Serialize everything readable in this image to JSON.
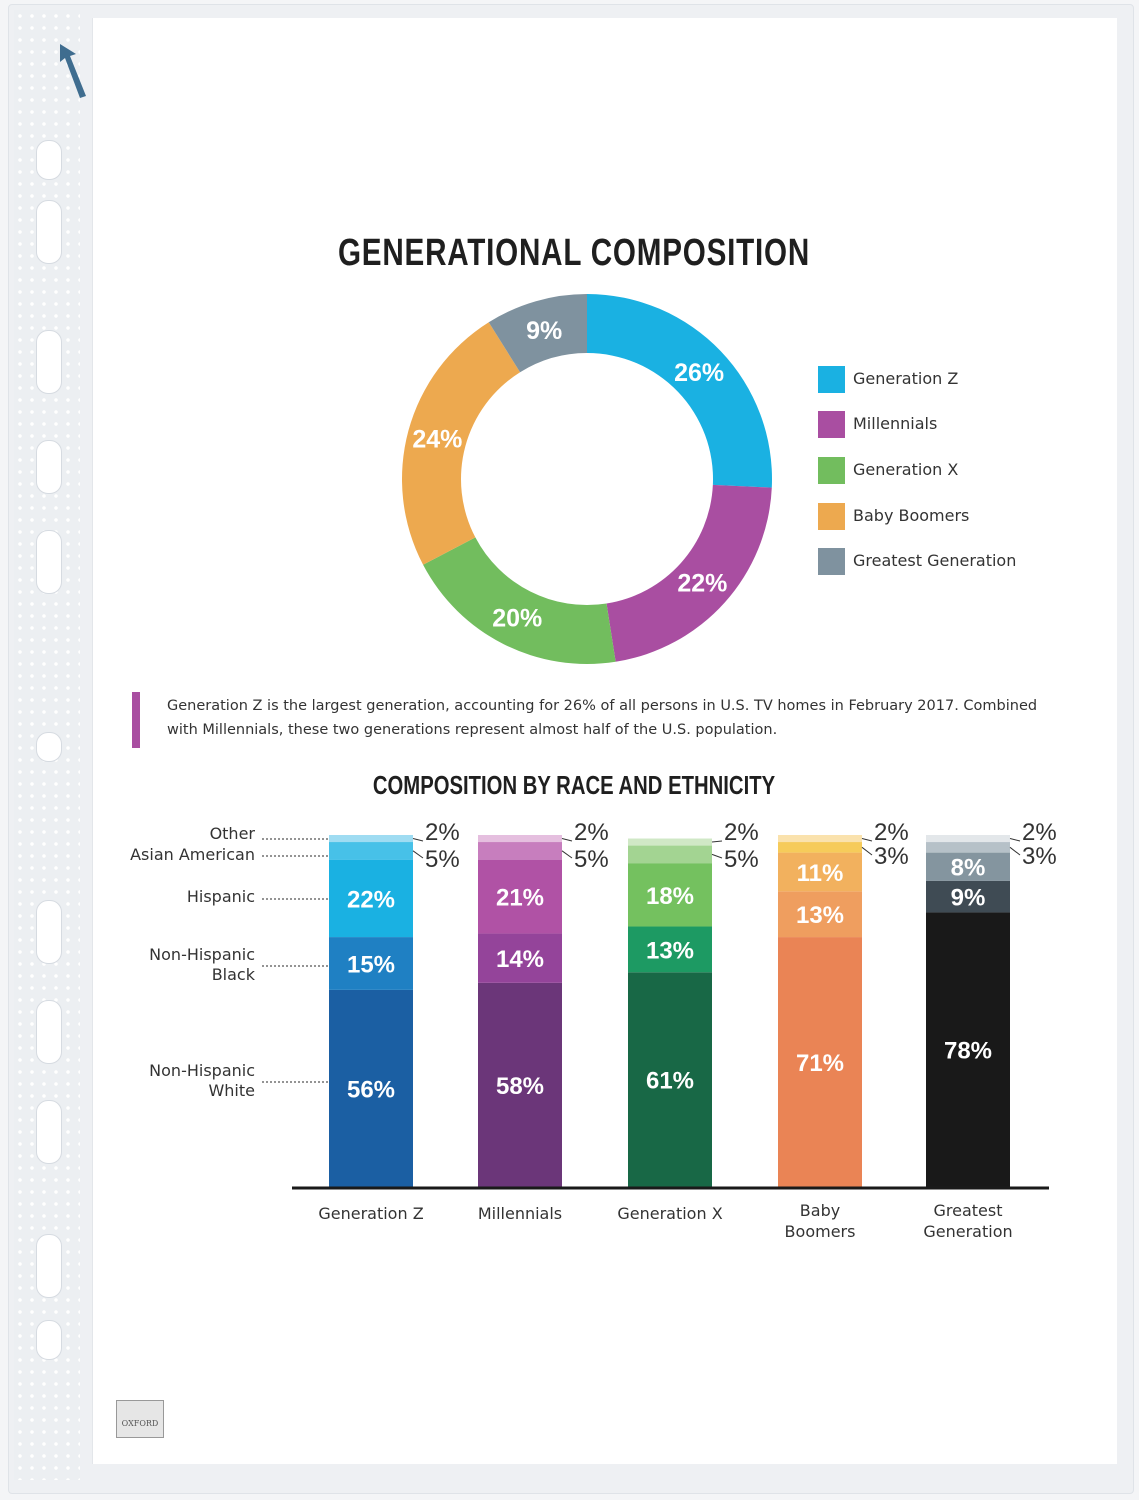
{
  "chart_data": [
    {
      "type": "pie",
      "variant": "donut",
      "title": "GENERATIONAL COMPOSITION",
      "labels": [
        "Generation Z",
        "Millennials",
        "Generation X",
        "Baby Boomers",
        "Greatest Generation"
      ],
      "values": [
        26,
        22,
        20,
        24,
        9
      ],
      "value_labels": [
        "26%",
        "22%",
        "20%",
        "24%",
        "9%"
      ],
      "colors": [
        "#1ab1e2",
        "#a94ea1",
        "#72bd5e",
        "#eda94f",
        "#7f929f"
      ],
      "legend_position": "right"
    },
    {
      "type": "bar",
      "stacked": true,
      "title": "COMPOSITION BY RACE AND ETHNICITY",
      "categories": [
        "Generation Z",
        "Millennials",
        "Generation X",
        "Baby Boomers",
        "Greatest Generation"
      ],
      "series": [
        {
          "name": "Non-Hispanic White",
          "values": [
            56,
            58,
            61,
            71,
            78
          ]
        },
        {
          "name": "Non-Hispanic Black",
          "values": [
            15,
            14,
            13,
            13,
            9
          ]
        },
        {
          "name": "Hispanic",
          "values": [
            22,
            21,
            18,
            11,
            8
          ]
        },
        {
          "name": "Asian American",
          "values": [
            5,
            5,
            5,
            3,
            3
          ]
        },
        {
          "name": "Other",
          "values": [
            2,
            2,
            2,
            2,
            2
          ]
        }
      ],
      "value_labels": [
        [
          "56%",
          "15%",
          "22%",
          "5%",
          "2%"
        ],
        [
          "58%",
          "14%",
          "21%",
          "5%",
          "2%"
        ],
        [
          "61%",
          "13%",
          "18%",
          "5%",
          "2%"
        ],
        [
          "71%",
          "13%",
          "11%",
          "3%",
          "2%"
        ],
        [
          "78%",
          "9%",
          "8%",
          "3%",
          "2%"
        ]
      ],
      "category_colors": [
        [
          "#1b5fa3",
          "#1f80c3",
          "#1ab1e2",
          "#47c1e8",
          "#9fdcf2"
        ],
        [
          "#6b3679",
          "#94449a",
          "#b052a5",
          "#c77ebe",
          "#e5bfdf"
        ],
        [
          "#186846",
          "#1d9a63",
          "#74c15f",
          "#a3d492",
          "#d0e8c6"
        ],
        [
          "#ea8455",
          "#ef9e5f",
          "#f2b15e",
          "#f6cb5a",
          "#fae2ad"
        ],
        [
          "#191919",
          "#3f4b54",
          "#84959f",
          "#b6c1c8",
          "#e3e7ea"
        ]
      ],
      "ylim": [
        0,
        100
      ]
    }
  ],
  "bar_label_lines": {
    "other": "Other",
    "asian": "Asian American",
    "hispanic": "Hispanic",
    "black_1": "Non-Hispanic",
    "black_2": "Black",
    "white_1": "Non-Hispanic",
    "white_2": "White"
  },
  "category_lines": {
    "gen_z": "Generation Z",
    "millennials": "Millennials",
    "gen_x": "Generation X",
    "boomers_1": "Baby",
    "boomers_2": "Boomers",
    "greatest_1": "Greatest",
    "greatest_2": "Generation"
  },
  "note": "Generation Z is the largest generation, accounting for 26% of all persons in U.S. TV homes in February 2017. Combined with Millennials, these two generations represent almost half of the U.S. population.",
  "brand_mark": "OXFORD",
  "colors": {
    "accent": "#a94ea1",
    "axis": "#1a1a1a"
  }
}
